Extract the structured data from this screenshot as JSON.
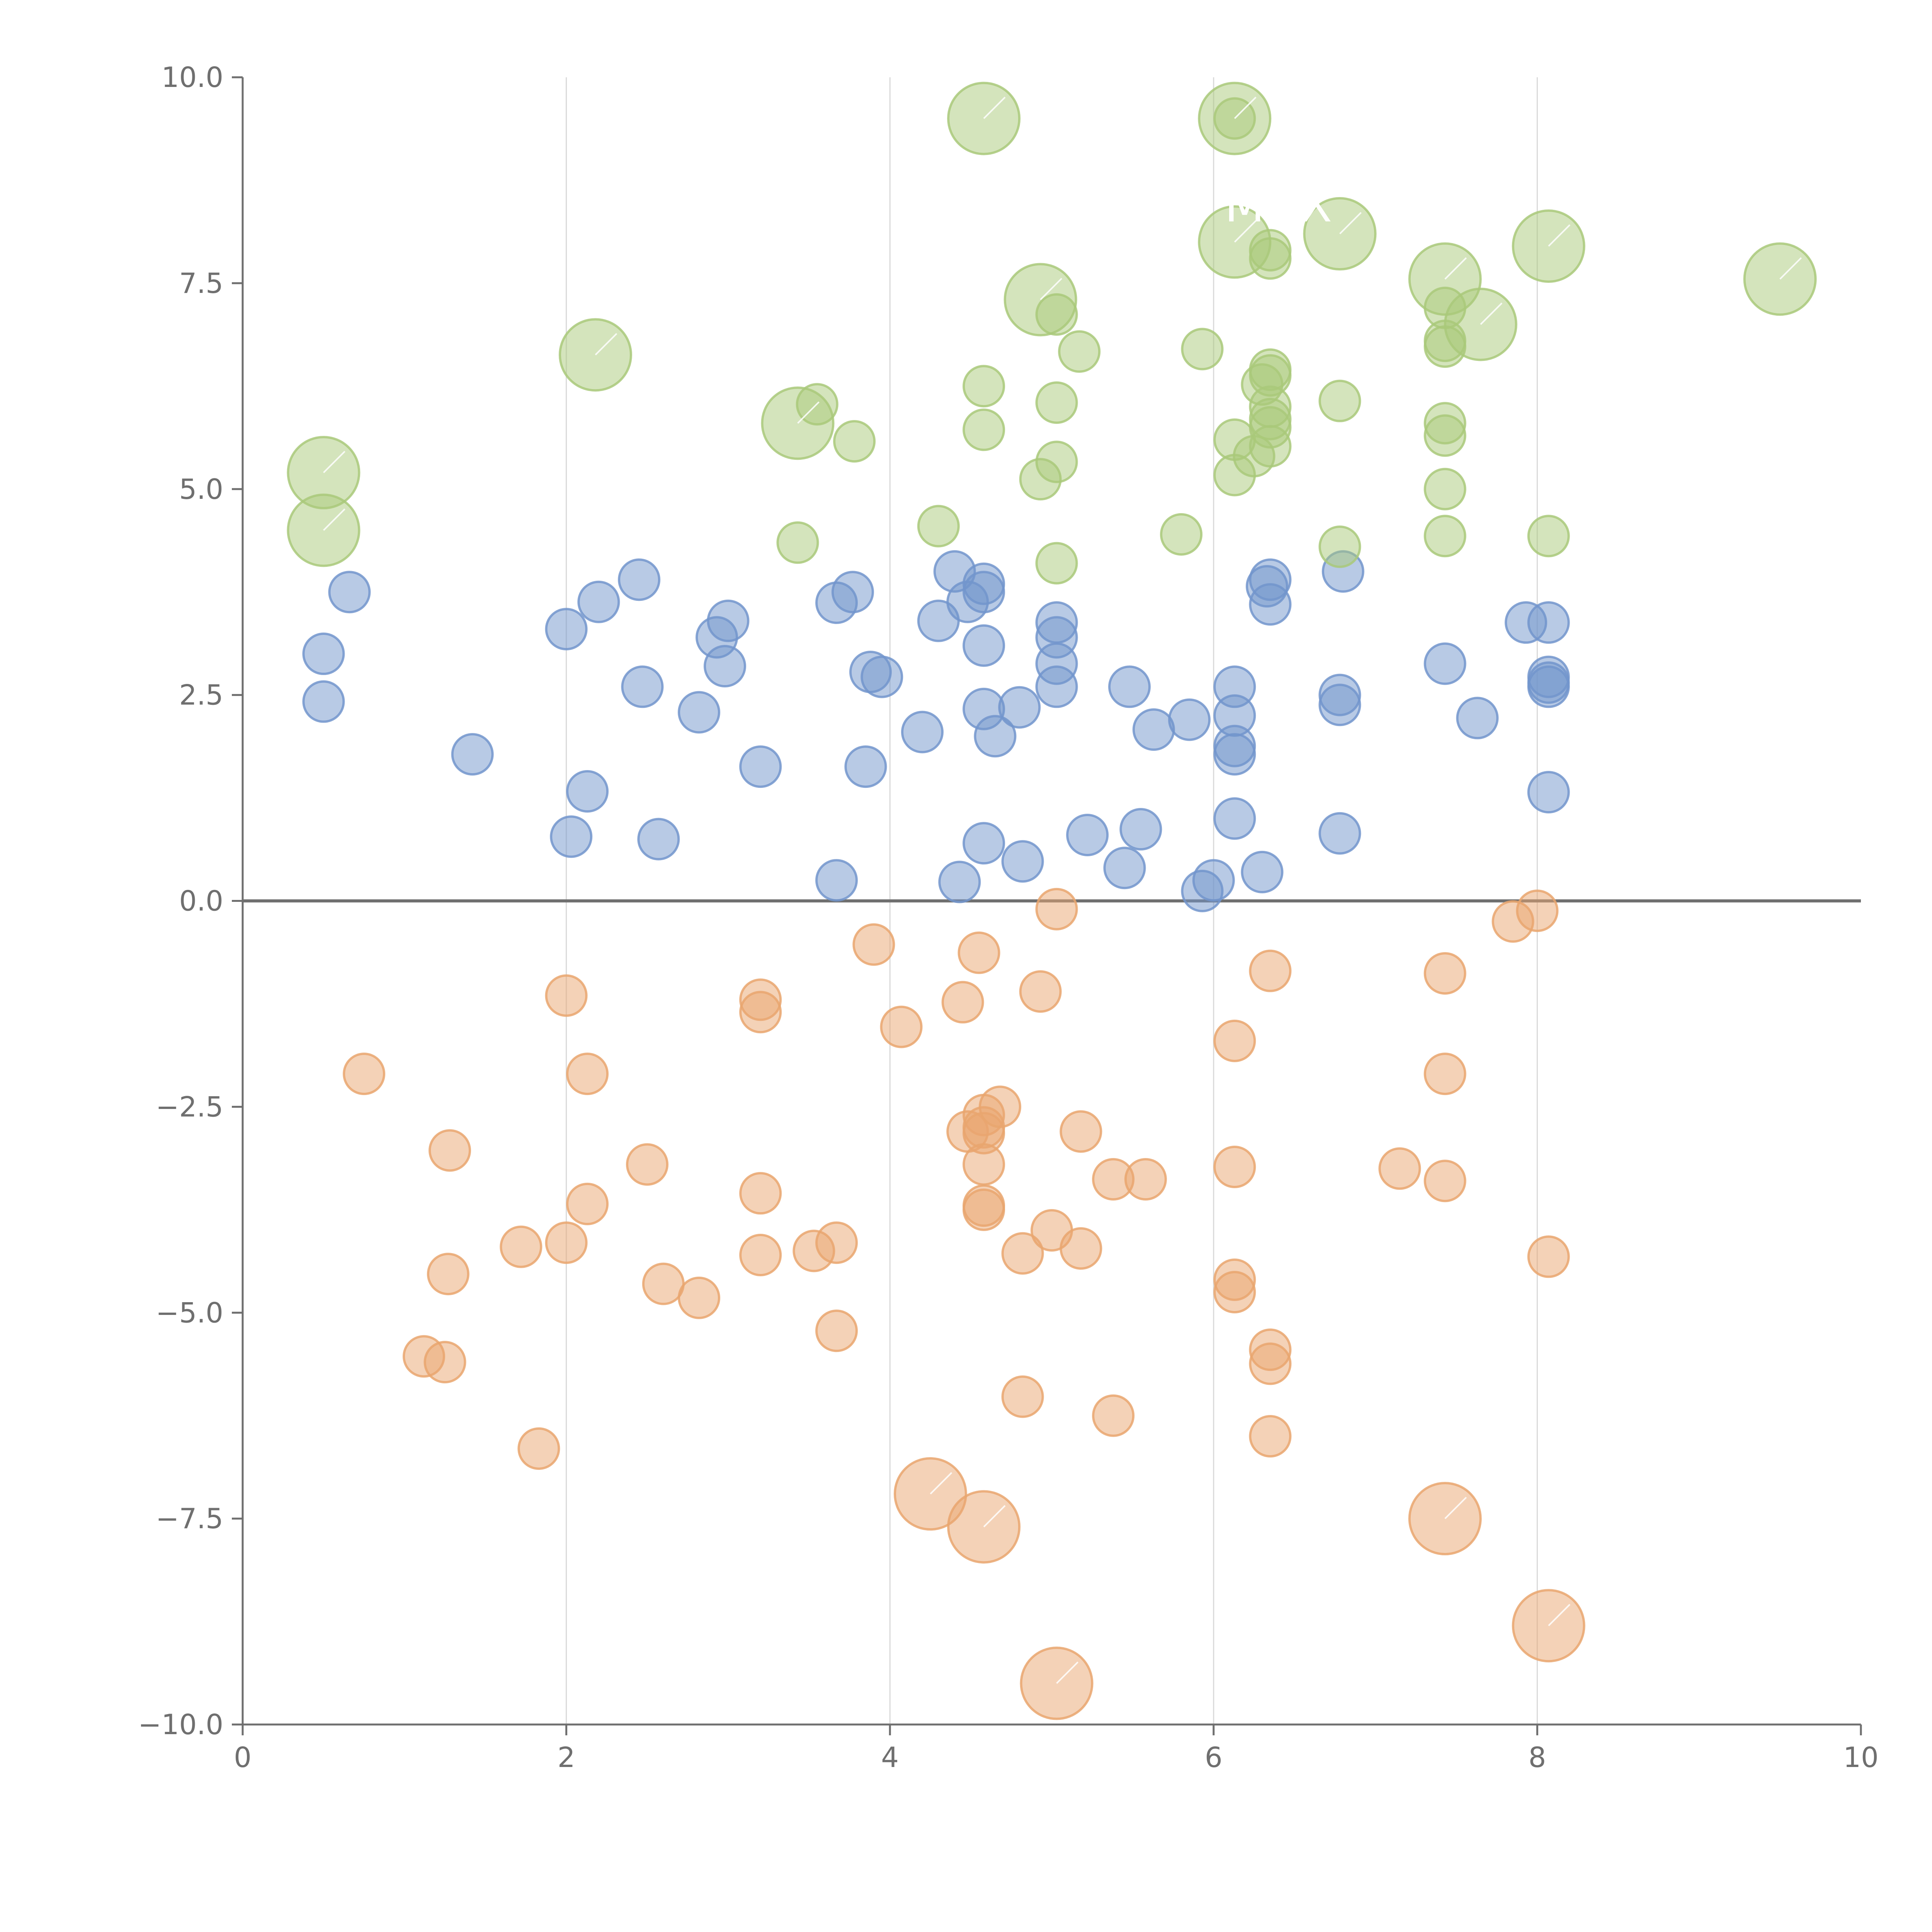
{
  "chart_data": {
    "type": "scatter",
    "title": "",
    "xlabel": "",
    "ylabel": "",
    "xlim": [
      0,
      10
    ],
    "ylim": [
      -10,
      10
    ],
    "x_ticks": [
      "0",
      "2",
      "4",
      "6",
      "8",
      "10"
    ],
    "y_ticks": [
      "−10.0",
      "−7.5",
      "−5.0",
      "−2.5",
      "0.0",
      "2.5",
      "5.0",
      "7.5",
      "10.0"
    ],
    "x_tick_values": [
      0,
      2,
      4,
      6,
      8,
      10
    ],
    "y_tick_values": [
      -10,
      -7.5,
      -5,
      -2.5,
      0,
      2.5,
      5,
      7.5,
      10
    ],
    "grid": "vertical",
    "series": [
      {
        "name": "blue",
        "color": "#7295cc",
        "points": [
          [
            0.5,
            3.0
          ],
          [
            0.5,
            2.42
          ],
          [
            0.66,
            3.75
          ],
          [
            1.42,
            1.78
          ],
          [
            2.0,
            3.3
          ],
          [
            2.03,
            0.78
          ],
          [
            2.13,
            1.33
          ],
          [
            2.2,
            3.63
          ],
          [
            2.45,
            3.9
          ],
          [
            2.47,
            2.6
          ],
          [
            2.57,
            0.75
          ],
          [
            2.82,
            2.29
          ],
          [
            2.93,
            3.2
          ],
          [
            3.0,
            3.4
          ],
          [
            2.98,
            2.85
          ],
          [
            3.2,
            1.63
          ],
          [
            3.67,
            0.25
          ],
          [
            3.67,
            3.62
          ],
          [
            3.77,
            3.75
          ],
          [
            3.85,
            1.63
          ],
          [
            3.88,
            2.78
          ],
          [
            3.95,
            2.72
          ],
          [
            4.2,
            2.05
          ],
          [
            4.3,
            3.4
          ],
          [
            4.4,
            4.0
          ],
          [
            4.43,
            0.23
          ],
          [
            4.48,
            3.63
          ],
          [
            4.58,
            3.85
          ],
          [
            4.58,
            3.75
          ],
          [
            4.58,
            3.1
          ],
          [
            4.58,
            2.33
          ],
          [
            4.58,
            0.7
          ],
          [
            4.65,
            2.0
          ],
          [
            4.8,
            2.35
          ],
          [
            4.82,
            0.48
          ],
          [
            5.03,
            3.38
          ],
          [
            5.03,
            3.2
          ],
          [
            5.03,
            2.88
          ],
          [
            5.03,
            2.6
          ],
          [
            5.22,
            0.8
          ],
          [
            5.45,
            0.4
          ],
          [
            5.48,
            2.6
          ],
          [
            5.55,
            0.87
          ],
          [
            5.63,
            2.08
          ],
          [
            5.85,
            2.2
          ],
          [
            5.93,
            0.12
          ],
          [
            6.0,
            0.25
          ],
          [
            6.13,
            2.6
          ],
          [
            6.13,
            2.25
          ],
          [
            6.13,
            1.88
          ],
          [
            6.13,
            1.78
          ],
          [
            6.13,
            1.0
          ],
          [
            6.3,
            0.35
          ],
          [
            6.33,
            3.82
          ],
          [
            6.35,
            3.9
          ],
          [
            6.35,
            3.6
          ],
          [
            6.78,
            2.5
          ],
          [
            6.78,
            2.38
          ],
          [
            6.78,
            0.82
          ],
          [
            6.8,
            4.0
          ],
          [
            7.43,
            2.88
          ],
          [
            7.63,
            2.22
          ],
          [
            7.93,
            3.38
          ],
          [
            8.07,
            3.38
          ],
          [
            8.07,
            2.72
          ],
          [
            8.07,
            2.65
          ],
          [
            8.07,
            2.6
          ],
          [
            8.07,
            1.32
          ]
        ],
        "point_labels": []
      },
      {
        "name": "green",
        "color": "#a9c97a",
        "points": [
          [
            3.43,
            4.35
          ],
          [
            3.55,
            6.03
          ],
          [
            3.78,
            5.58
          ],
          [
            4.3,
            4.55
          ],
          [
            4.58,
            6.25
          ],
          [
            4.58,
            5.72
          ],
          [
            4.93,
            5.12
          ],
          [
            5.03,
            7.12
          ],
          [
            5.03,
            6.05
          ],
          [
            5.03,
            5.33
          ],
          [
            5.03,
            4.1
          ],
          [
            5.17,
            6.67
          ],
          [
            5.8,
            4.45
          ],
          [
            5.93,
            6.7
          ],
          [
            6.13,
            5.6
          ],
          [
            6.13,
            5.17
          ],
          [
            6.25,
            5.4
          ],
          [
            6.3,
            6.27
          ],
          [
            6.35,
            7.8
          ],
          [
            6.35,
            7.9
          ],
          [
            6.35,
            6.45
          ],
          [
            6.35,
            6.38
          ],
          [
            6.35,
            6.0
          ],
          [
            6.35,
            5.85
          ],
          [
            6.35,
            5.75
          ],
          [
            6.35,
            5.52
          ],
          [
            6.78,
            6.07
          ],
          [
            6.78,
            4.3
          ],
          [
            7.43,
            7.2
          ],
          [
            7.43,
            6.8
          ],
          [
            7.43,
            6.73
          ],
          [
            7.43,
            5.8
          ],
          [
            7.43,
            5.65
          ],
          [
            7.43,
            5.0
          ],
          [
            7.43,
            4.43
          ],
          [
            8.07,
            4.43
          ],
          [
            6.13,
            9.5
          ]
        ],
        "point_labels": [],
        "large_points": [
          [
            0.5,
            5.2
          ],
          [
            0.5,
            4.5
          ],
          [
            2.18,
            6.63
          ],
          [
            3.43,
            5.8
          ],
          [
            4.58,
            9.5
          ],
          [
            4.93,
            7.3
          ],
          [
            6.13,
            9.5
          ],
          [
            6.13,
            8.0
          ],
          [
            6.78,
            8.1
          ],
          [
            7.43,
            7.55
          ],
          [
            7.65,
            7.0
          ],
          [
            8.07,
            7.95
          ],
          [
            9.5,
            7.55
          ]
        ]
      },
      {
        "name": "orange",
        "color": "#e9a66f",
        "points": [
          [
            0.75,
            -2.1
          ],
          [
            1.12,
            -5.53
          ],
          [
            1.25,
            -5.6
          ],
          [
            1.27,
            -4.53
          ],
          [
            1.28,
            -3.03
          ],
          [
            1.72,
            -4.2
          ],
          [
            1.83,
            -6.65
          ],
          [
            2.0,
            -1.15
          ],
          [
            2.0,
            -4.15
          ],
          [
            2.13,
            -2.1
          ],
          [
            2.13,
            -3.68
          ],
          [
            2.5,
            -3.2
          ],
          [
            2.6,
            -4.65
          ],
          [
            2.82,
            -4.82
          ],
          [
            3.2,
            -1.2
          ],
          [
            3.2,
            -1.35
          ],
          [
            3.2,
            -3.55
          ],
          [
            3.2,
            -4.3
          ],
          [
            3.53,
            -4.25
          ],
          [
            3.67,
            -4.15
          ],
          [
            3.67,
            -5.22
          ],
          [
            3.9,
            -0.53
          ],
          [
            4.07,
            -1.53
          ],
          [
            4.45,
            -1.23
          ],
          [
            4.48,
            -2.8
          ],
          [
            4.55,
            -0.63
          ],
          [
            4.58,
            -2.6
          ],
          [
            4.58,
            -2.75
          ],
          [
            4.58,
            -2.82
          ],
          [
            4.58,
            -3.2
          ],
          [
            4.58,
            -3.7
          ],
          [
            4.58,
            -3.75
          ],
          [
            4.68,
            -2.5
          ],
          [
            4.82,
            -4.28
          ],
          [
            4.82,
            -6.02
          ],
          [
            4.93,
            -1.1
          ],
          [
            5.0,
            -4.0
          ],
          [
            5.03,
            -0.1
          ],
          [
            5.18,
            -2.8
          ],
          [
            5.18,
            -4.22
          ],
          [
            5.38,
            -3.38
          ],
          [
            5.38,
            -6.25
          ],
          [
            5.58,
            -3.38
          ],
          [
            6.13,
            -1.7
          ],
          [
            6.13,
            -3.23
          ],
          [
            6.13,
            -4.6
          ],
          [
            6.13,
            -4.75
          ],
          [
            6.35,
            -0.85
          ],
          [
            6.35,
            -5.45
          ],
          [
            6.35,
            -5.62
          ],
          [
            6.35,
            -6.5
          ],
          [
            7.15,
            -3.25
          ],
          [
            7.43,
            -0.88
          ],
          [
            7.43,
            -2.1
          ],
          [
            7.43,
            -3.4
          ],
          [
            7.85,
            -0.25
          ],
          [
            8.0,
            -0.12
          ],
          [
            8.07,
            -4.32
          ]
        ],
        "point_labels": [],
        "large_points": [
          [
            4.25,
            -7.2
          ],
          [
            4.58,
            -7.6
          ],
          [
            5.03,
            -9.5
          ],
          [
            7.43,
            -7.5
          ],
          [
            8.07,
            -8.8
          ]
        ]
      }
    ],
    "annotations": [
      {
        "text": "MDX",
        "x": 6.4,
        "y": 8.25
      }
    ]
  }
}
